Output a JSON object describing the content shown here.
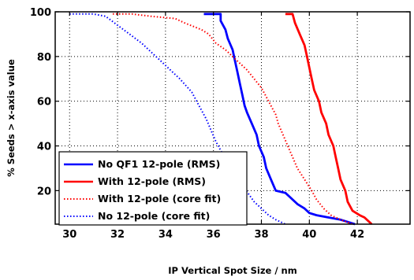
{
  "chart_data": {
    "type": "line",
    "title": "",
    "xlabel": "IP Vertical Spot Size / nm",
    "ylabel": "% Seeds > x-axis value",
    "xlim": [
      29.4,
      44.2
    ],
    "ylim": [
      5,
      100
    ],
    "xticks": [
      30,
      32,
      34,
      36,
      38,
      40,
      42
    ],
    "yticks": [
      20,
      40,
      60,
      80,
      100
    ],
    "grid": true,
    "legend_position": "lower-left",
    "series": [
      {
        "name": "No QF1 12-pole (RMS)",
        "color": "#0000ff",
        "style": "solid",
        "points": [
          [
            35.6,
            99
          ],
          [
            36.3,
            99
          ],
          [
            36.3,
            96
          ],
          [
            36.5,
            92
          ],
          [
            36.6,
            88
          ],
          [
            36.8,
            83
          ],
          [
            36.9,
            78
          ],
          [
            37.0,
            73
          ],
          [
            37.1,
            68
          ],
          [
            37.2,
            63
          ],
          [
            37.3,
            58
          ],
          [
            37.4,
            55
          ],
          [
            37.6,
            50
          ],
          [
            37.8,
            45
          ],
          [
            37.9,
            40
          ],
          [
            38.1,
            35
          ],
          [
            38.2,
            30
          ],
          [
            38.4,
            25
          ],
          [
            38.6,
            20
          ],
          [
            39.0,
            19
          ],
          [
            39.2,
            17
          ],
          [
            39.5,
            14
          ],
          [
            39.8,
            12
          ],
          [
            40.0,
            10
          ],
          [
            40.3,
            9
          ],
          [
            40.8,
            8
          ],
          [
            41.3,
            7
          ],
          [
            41.9,
            5
          ]
        ]
      },
      {
        "name": "With 12-pole (RMS)",
        "color": "#ff0000",
        "style": "solid",
        "points": [
          [
            39.0,
            99
          ],
          [
            39.3,
            99
          ],
          [
            39.4,
            95
          ],
          [
            39.6,
            90
          ],
          [
            39.8,
            85
          ],
          [
            39.9,
            80
          ],
          [
            40.0,
            75
          ],
          [
            40.1,
            70
          ],
          [
            40.2,
            65
          ],
          [
            40.4,
            60
          ],
          [
            40.5,
            55
          ],
          [
            40.7,
            50
          ],
          [
            40.8,
            45
          ],
          [
            41.0,
            40
          ],
          [
            41.1,
            35
          ],
          [
            41.2,
            30
          ],
          [
            41.3,
            25
          ],
          [
            41.5,
            20
          ],
          [
            41.6,
            15
          ],
          [
            41.8,
            11
          ],
          [
            42.1,
            9
          ],
          [
            42.3,
            8
          ],
          [
            42.5,
            6
          ],
          [
            42.6,
            5
          ]
        ]
      },
      {
        "name": "With 12-pole (core fit)",
        "color": "#ff0000",
        "style": "dotted",
        "points": [
          [
            31.8,
            99
          ],
          [
            32.6,
            99
          ],
          [
            33.4,
            98
          ],
          [
            34.4,
            97
          ],
          [
            34.8,
            95
          ],
          [
            35.5,
            92
          ],
          [
            35.8,
            90
          ],
          [
            36.1,
            86
          ],
          [
            36.5,
            83
          ],
          [
            36.8,
            80
          ],
          [
            37.1,
            77
          ],
          [
            37.4,
            74
          ],
          [
            37.7,
            70
          ],
          [
            38.0,
            66
          ],
          [
            38.2,
            62
          ],
          [
            38.4,
            58
          ],
          [
            38.6,
            54
          ],
          [
            38.7,
            50
          ],
          [
            38.9,
            45
          ],
          [
            39.1,
            40
          ],
          [
            39.3,
            35
          ],
          [
            39.5,
            30
          ],
          [
            39.8,
            25
          ],
          [
            40.1,
            20
          ],
          [
            40.3,
            16
          ],
          [
            40.6,
            12
          ],
          [
            40.9,
            9
          ],
          [
            41.3,
            7
          ],
          [
            41.8,
            5
          ]
        ]
      },
      {
        "name": "No 12-pole (core fit)",
        "color": "#0000ff",
        "style": "dotted",
        "points": [
          [
            30.0,
            99
          ],
          [
            31.0,
            99
          ],
          [
            31.5,
            98
          ],
          [
            32.0,
            94
          ],
          [
            32.5,
            90
          ],
          [
            33.0,
            86
          ],
          [
            33.5,
            81
          ],
          [
            34.0,
            76
          ],
          [
            34.6,
            70
          ],
          [
            35.1,
            64
          ],
          [
            35.4,
            58
          ],
          [
            35.7,
            52
          ],
          [
            35.9,
            47
          ],
          [
            36.1,
            42
          ],
          [
            36.3,
            38
          ],
          [
            36.5,
            34
          ],
          [
            36.7,
            30
          ],
          [
            36.9,
            27
          ],
          [
            37.1,
            24
          ],
          [
            37.3,
            21
          ],
          [
            37.5,
            18
          ],
          [
            37.7,
            15
          ],
          [
            38.0,
            12
          ],
          [
            38.3,
            9
          ],
          [
            38.6,
            7
          ],
          [
            39.0,
            5
          ]
        ]
      }
    ]
  }
}
